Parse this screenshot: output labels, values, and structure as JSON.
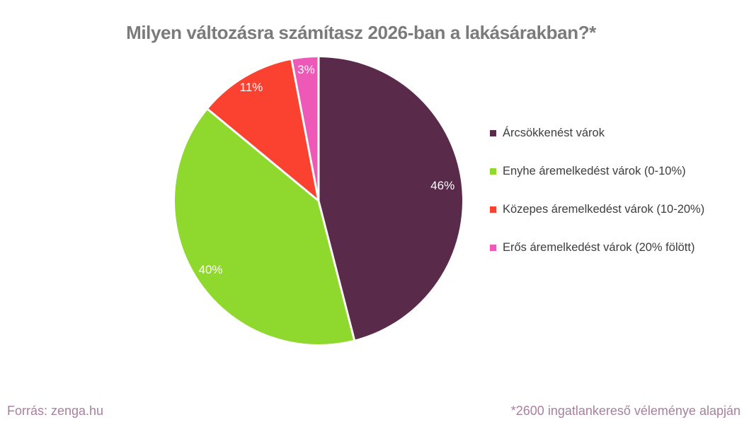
{
  "title": "Milyen változásra számítasz 2026-ban a lakásárakban?*",
  "footer": {
    "source": "Forrás: zenga.hu",
    "note": "*2600 ingatlankereső véleménye alapján"
  },
  "colors": {
    "background": "#ffffff",
    "title_text": "#7b7b7b",
    "legend_text": "#3d3d3d",
    "footer_text": "#a87f9f",
    "slice_border": "#ffffff",
    "slice_label_text": "#ffffff"
  },
  "chart_data": {
    "type": "pie",
    "title": "Milyen változásra számítasz 2026-ban a lakásárakban?*",
    "categories": [
      "Árcsökkenést várok",
      "Enyhe áremelkedést várok (0-10%)",
      "Közepes áremelkedést várok (10-20%)",
      "Erős áremelkedést várok (20% fölött)"
    ],
    "values": [
      46,
      40,
      11,
      3
    ],
    "value_labels": [
      "46%",
      "40%",
      "11%",
      "3%"
    ],
    "colors": [
      "#592a49",
      "#8fd92e",
      "#fb4231",
      "#ee58b7"
    ],
    "unit": "%",
    "start_angle_deg": 0,
    "direction": "clockwise",
    "legend_position": "right",
    "source": "Forrás: zenga.hu",
    "footnote": "*2600 ingatlankereső véleménye alapján"
  }
}
